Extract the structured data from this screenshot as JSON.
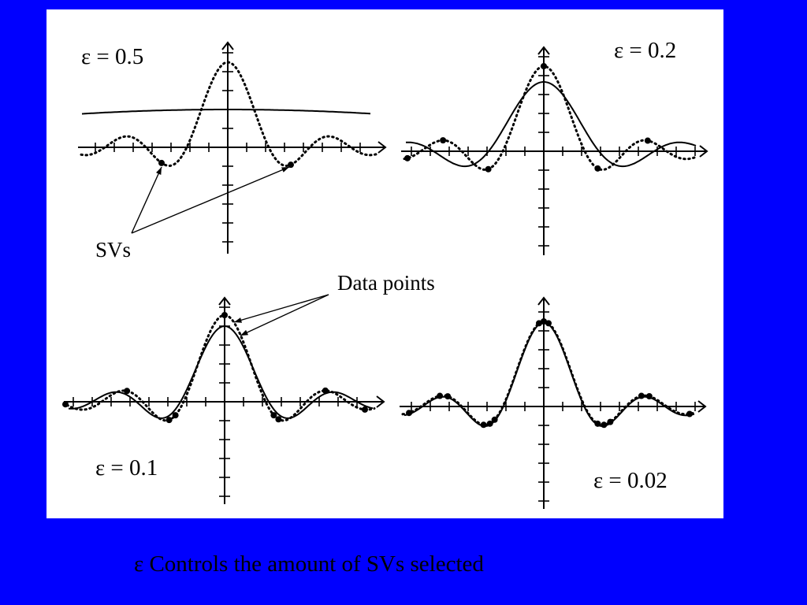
{
  "colors": {
    "background": "#0000ff",
    "figure": "#ffffff",
    "ink": "#000000"
  },
  "figure": {
    "plots": [
      {
        "id": "eps-0.5",
        "label": "ε = 0.5"
      },
      {
        "id": "eps-0.2",
        "label": "ε = 0.2"
      },
      {
        "id": "eps-0.1",
        "label": "ε = 0.1"
      },
      {
        "id": "eps-0.02",
        "label": "ε = 0.02"
      }
    ],
    "annotations": {
      "svs": "SVs",
      "data_points": "Data points"
    }
  },
  "caption": {
    "symbol": "ε",
    "text": "Controls the amount of SVs selected"
  }
}
